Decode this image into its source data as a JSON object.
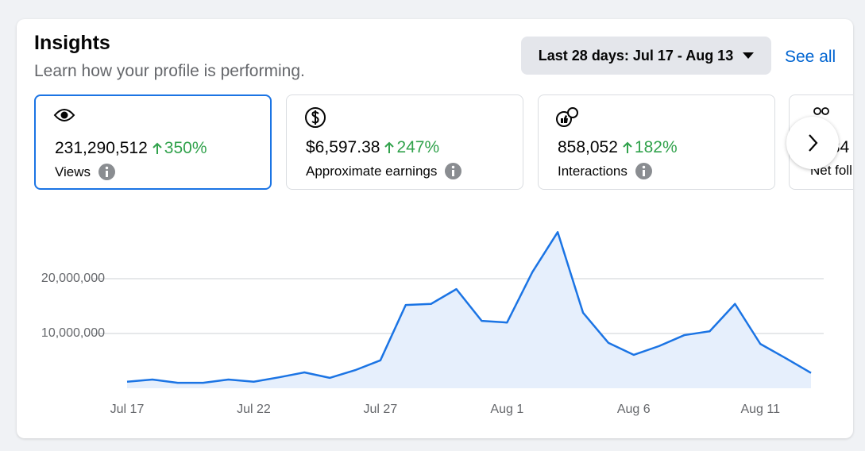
{
  "header": {
    "title": "Insights",
    "subtitle": "Learn how your profile is performing.",
    "date_range": "Last 28 days: Jul 17 - Aug 13",
    "see_all": "See all"
  },
  "cards": [
    {
      "value": "231,290,512",
      "change": "350%",
      "label": "Views"
    },
    {
      "value": "$6,597.38",
      "change": "247%",
      "label": "Approximate earnings"
    },
    {
      "value": "858,052",
      "change": "182%",
      "label": "Interactions"
    },
    {
      "value": ",34",
      "label": "Net foll"
    }
  ],
  "chart_data": {
    "type": "area",
    "categories": [
      "Jul 17",
      null,
      null,
      null,
      null,
      "Jul 22",
      null,
      null,
      null,
      null,
      "Jul 27",
      null,
      null,
      null,
      null,
      "Aug 1",
      null,
      null,
      null,
      null,
      "Aug 6",
      null,
      null,
      null,
      null,
      "Aug 11",
      null,
      null
    ],
    "values": [
      1200000,
      1600000,
      1000000,
      1000000,
      1600000,
      1200000,
      2000000,
      2900000,
      1900000,
      3300000,
      5100000,
      15200000,
      15400000,
      18100000,
      12300000,
      12000000,
      21200000,
      28500000,
      13800000,
      8300000,
      6100000,
      7700000,
      9700000,
      10400000,
      15400000,
      8100000,
      5500000,
      2800000
    ],
    "color": "#1b74e4",
    "fill": "#e6effc",
    "ylim": [
      0,
      30000000
    ],
    "yticks": [
      {
        "value": 10000000,
        "label": "10,000,000"
      },
      {
        "value": 20000000,
        "label": "20,000,000"
      }
    ],
    "grid": true
  }
}
